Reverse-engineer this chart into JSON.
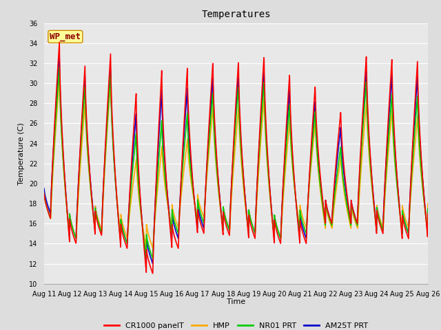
{
  "title": "Temperatures",
  "xlabel": "Time",
  "ylabel": "Temperature (C)",
  "xlim_days": [
    11,
    26
  ],
  "ylim": [
    10,
    36
  ],
  "yticks": [
    10,
    12,
    14,
    16,
    18,
    20,
    22,
    24,
    26,
    28,
    30,
    32,
    34,
    36
  ],
  "xtick_labels": [
    "Aug 11",
    "Aug 12",
    "Aug 13",
    "Aug 14",
    "Aug 15",
    "Aug 16",
    "Aug 17",
    "Aug 18",
    "Aug 19",
    "Aug 20",
    "Aug 21",
    "Aug 22",
    "Aug 23",
    "Aug 24",
    "Aug 25",
    "Aug 26"
  ],
  "background_color": "#dddddd",
  "plot_bg_color": "#e8e8e8",
  "grid_color": "#ffffff",
  "series_colors": {
    "CR1000 panelT": "#ff0000",
    "HMP": "#ffaa00",
    "NR01 PRT": "#00cc00",
    "AM25T PRT": "#0000cc"
  },
  "annotation_text": "WP_met",
  "annotation_facecolor": "#ffff99",
  "annotation_edgecolor": "#cc8800",
  "lw": 1.2,
  "title_fontsize": 10,
  "label_fontsize": 8,
  "tick_fontsize": 7,
  "legend_fontsize": 8
}
